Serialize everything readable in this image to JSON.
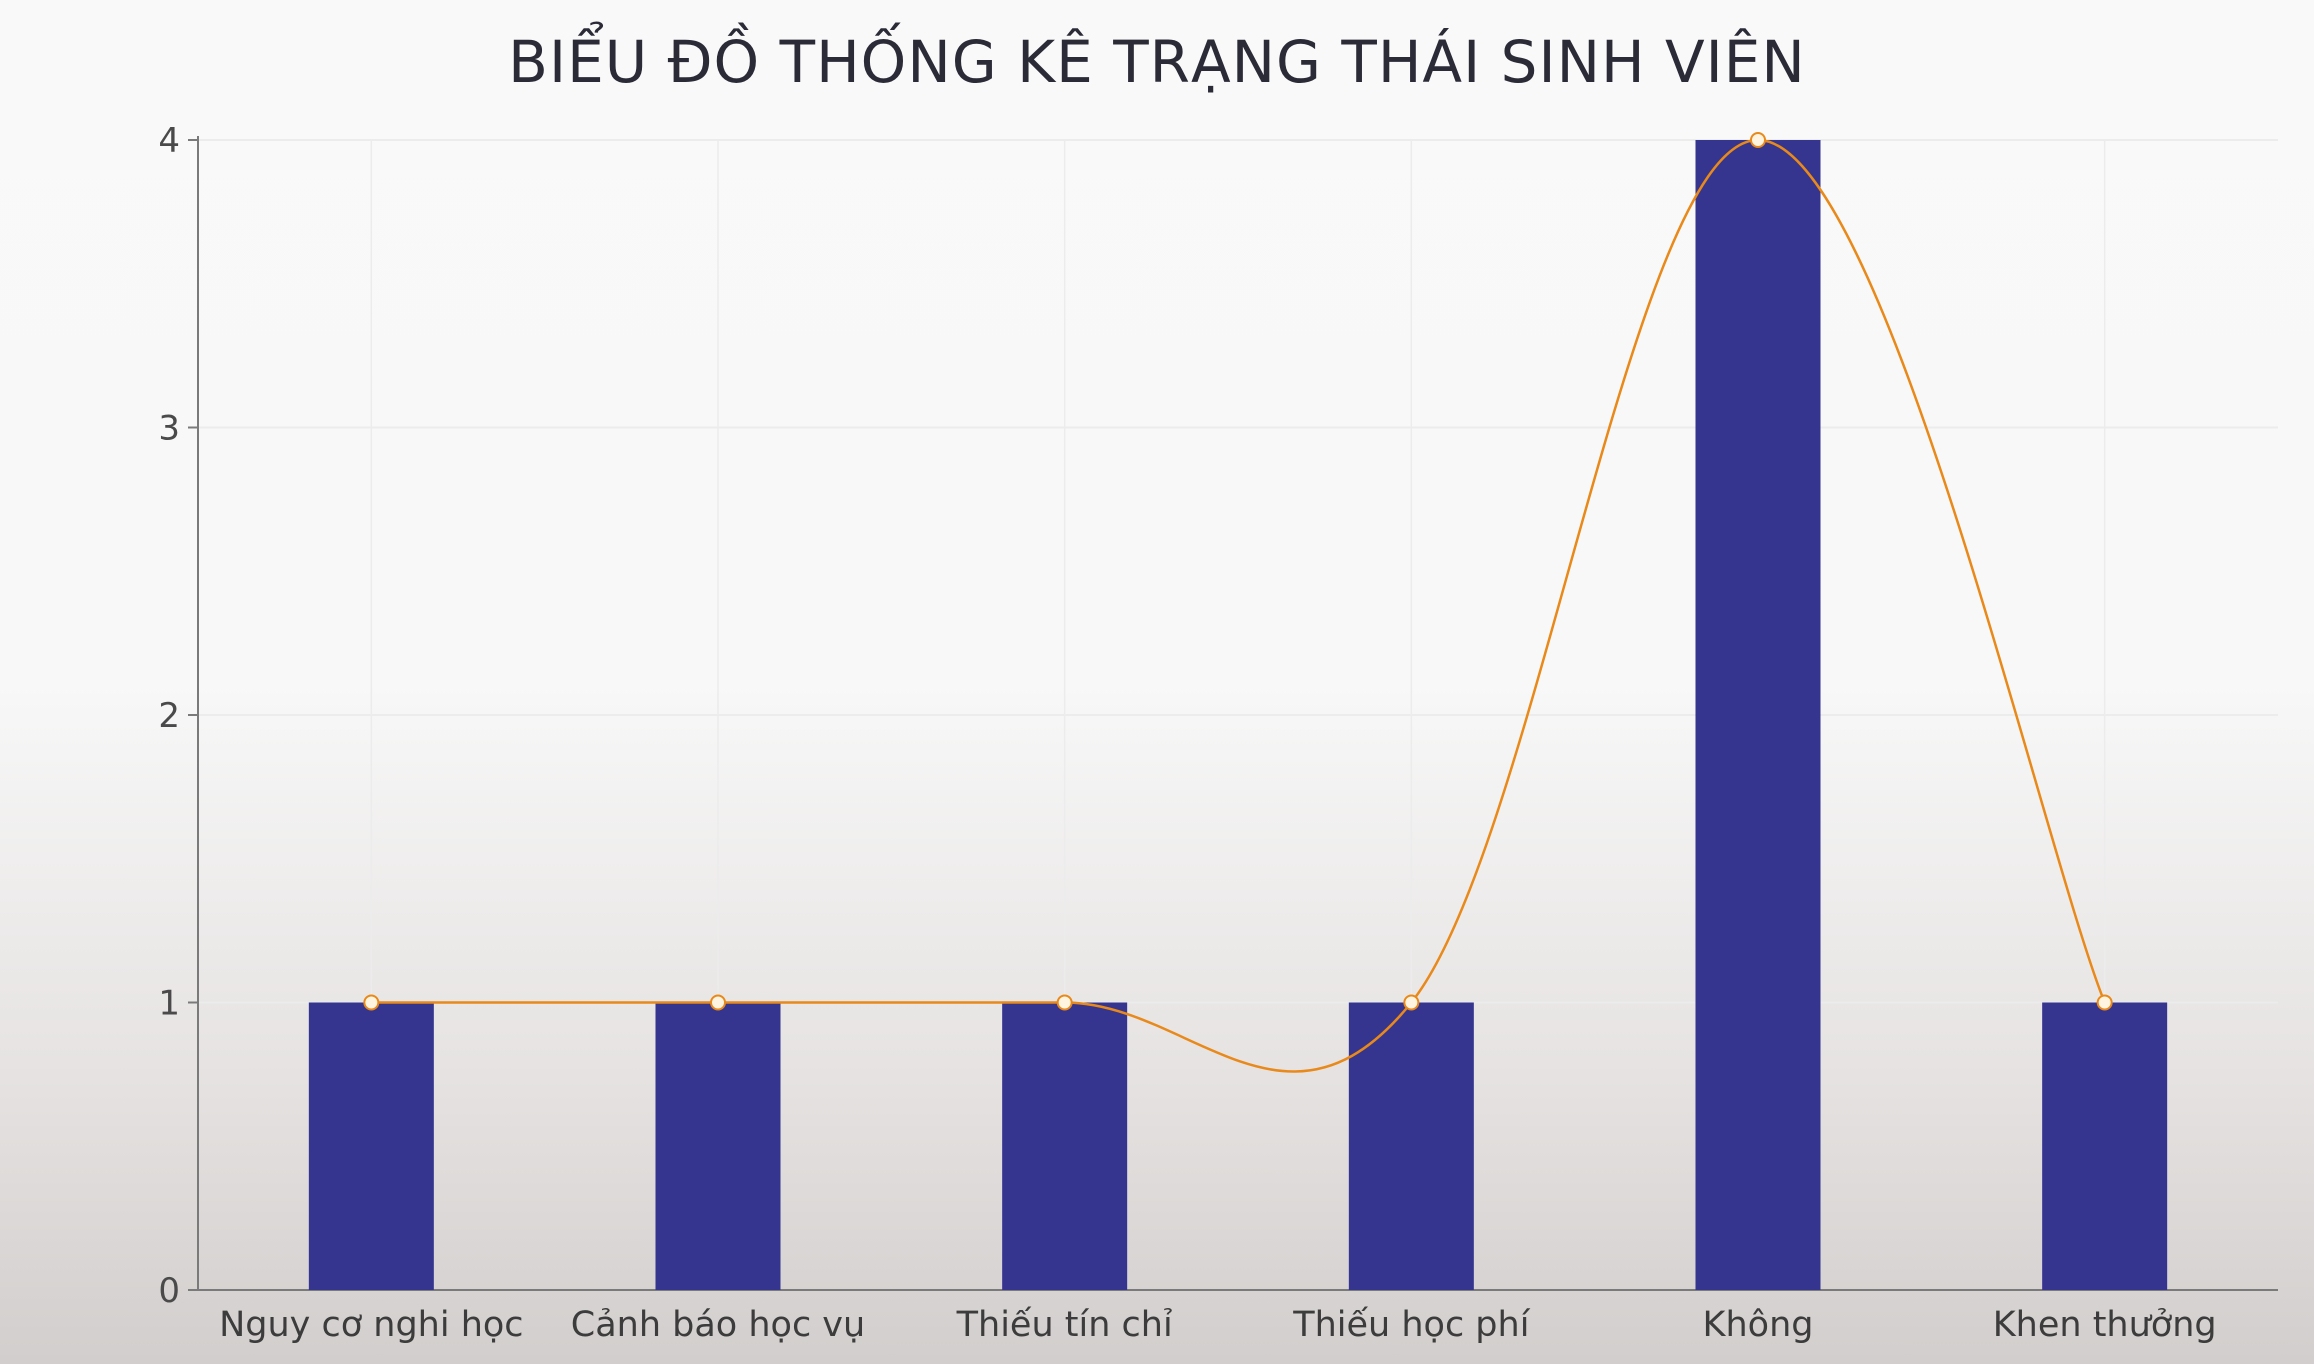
{
  "chart_data": {
    "type": "bar",
    "title": "BIỂU ĐỒ THỐNG KÊ TRẠNG THÁI SINH VIÊN",
    "xlabel": "",
    "ylabel": "",
    "categories": [
      "Nguy cơ nghi học",
      "Cảnh báo học vụ",
      "Thiếu tín chỉ",
      "Thiếu học phí",
      "Không",
      "Khen thưởng"
    ],
    "series": [
      {
        "type": "bar",
        "values": [
          1,
          1,
          1,
          1,
          4,
          1
        ]
      },
      {
        "type": "line",
        "smooth": true,
        "values": [
          1,
          1,
          1,
          1,
          4,
          1
        ]
      }
    ],
    "ylim": [
      0,
      4
    ],
    "yticks": [
      0,
      1,
      2,
      3,
      4
    ],
    "grid": true,
    "legend": "none",
    "colors": {
      "bar": "#353590",
      "line": "#e8891a",
      "marker_fill": "#fff4e0",
      "axis": "#7a7a7a",
      "grid": "#ececec"
    }
  }
}
